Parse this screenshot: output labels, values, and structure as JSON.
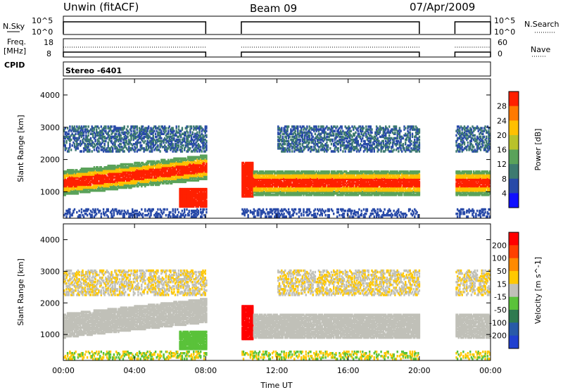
{
  "header": {
    "station": "Unwin (fitACF)",
    "beam": "Beam 09",
    "date": "07/Apr/2009"
  },
  "small_panels": {
    "nsky_label": "N.Sky",
    "nsky_ticks": [
      "10^5",
      "10^0"
    ],
    "nsearch_label": "N.Search",
    "freq_label_1": "Freq.",
    "freq_label_2": "[MHz]",
    "freq_ticks": [
      "18",
      "8"
    ],
    "nave_ticks": [
      "60",
      "0"
    ],
    "nave_label": "Nave",
    "cpid_label": "CPID",
    "cpid_value": "Stereo -6401"
  },
  "chart_data": [
    {
      "type": "heatmap",
      "title": "",
      "ylabel": "Slant Range [km]",
      "xlabel": "",
      "x_ticks": [
        "00:00",
        "04:00",
        "08:00",
        "12:00",
        "16:00",
        "20:00",
        "00:00"
      ],
      "x_range_hours": [
        0,
        24
      ],
      "y_ticks": [
        1000,
        2000,
        3000,
        4000
      ],
      "ylim_km": [
        180,
        4500
      ],
      "data_gaps_hours": [
        [
          8.0,
          10.0
        ],
        [
          20.0,
          22.0
        ]
      ],
      "colorbar": {
        "label": "Power [dB]",
        "ticks": [
          4,
          8,
          12,
          16,
          20,
          24,
          28
        ],
        "range": [
          0,
          32
        ],
        "colors": [
          "#1010ff",
          "#284aa8",
          "#3d7a70",
          "#5aa25a",
          "#b8c22a",
          "#ffc000",
          "#ff7a00",
          "#ff2000"
        ]
      }
    },
    {
      "type": "heatmap",
      "title": "",
      "ylabel": "Slant Range [km]",
      "xlabel": "Time UT",
      "x_ticks": [
        "00:00",
        "04:00",
        "08:00",
        "12:00",
        "16:00",
        "20:00",
        "00:00"
      ],
      "x_range_hours": [
        0,
        24
      ],
      "y_ticks": [
        1000,
        2000,
        3000,
        4000
      ],
      "ylim_km": [
        180,
        4500
      ],
      "data_gaps_hours": [
        [
          8.0,
          10.0
        ],
        [
          20.0,
          22.0
        ]
      ],
      "colorbar": {
        "label": "Velocity [m s^-1]",
        "ticks": [
          200,
          100,
          50,
          15,
          -15,
          -50,
          -100,
          -200
        ],
        "colors": [
          "#2040d0",
          "#285aa8",
          "#2f7a50",
          "#5ac23a",
          "#c0c0b8",
          "#ffc800",
          "#ff8a00",
          "#ff4000",
          "#ff0000"
        ]
      }
    }
  ]
}
